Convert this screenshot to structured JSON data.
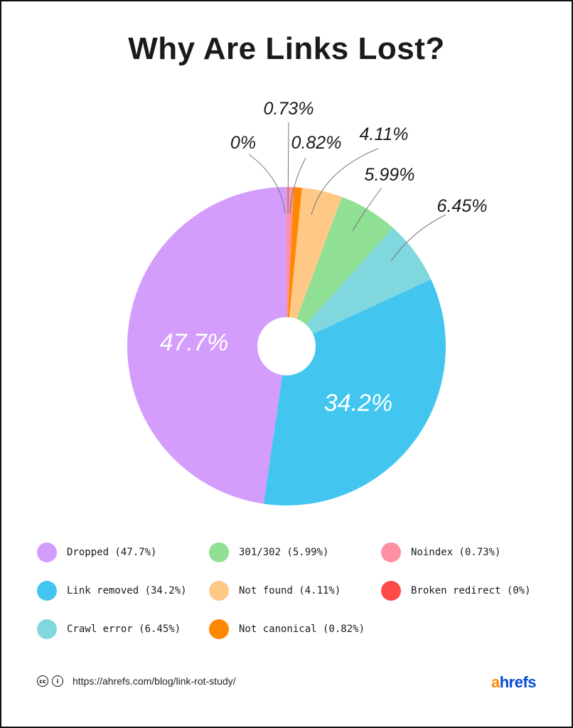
{
  "title": "Why Are Links Lost?",
  "chart_data": {
    "type": "pie",
    "title": "Why Are Links Lost?",
    "donut_hole": true,
    "start_angle_deg": 0,
    "direction": "clockwise",
    "slices": [
      {
        "label": "Broken redirect",
        "value": 0,
        "color": "#ff4a4a",
        "data_label": "0%"
      },
      {
        "label": "Noindex",
        "value": 0.73,
        "color": "#ff8fa3",
        "data_label": "0.73%"
      },
      {
        "label": "Not canonical",
        "value": 0.82,
        "color": "#ff8800",
        "data_label": "0.82%"
      },
      {
        "label": "Not found",
        "value": 4.11,
        "color": "#ffc887",
        "data_label": "4.11%"
      },
      {
        "label": "301/302",
        "value": 5.99,
        "color": "#8fdf94",
        "data_label": "5.99%"
      },
      {
        "label": "Crawl error",
        "value": 6.45,
        "color": "#80d7de",
        "data_label": "6.45%"
      },
      {
        "label": "Link removed",
        "value": 34.2,
        "color": "#42c6f0",
        "data_label": "34.2%"
      },
      {
        "label": "Dropped",
        "value": 47.7,
        "color": "#d49dfc",
        "data_label": "47.7%"
      }
    ],
    "legend_position": "bottom"
  },
  "labels": {
    "dropped": "47.7%",
    "link_removed": "34.2%",
    "crawl_error": "6.45%",
    "r301": "5.99%",
    "not_found": "4.11%",
    "not_canonical": "0.82%",
    "noindex": "0.73%",
    "broken_redirect": "0%"
  },
  "legend": [
    {
      "text": "Dropped (47.7%)",
      "color": "#d49dfc"
    },
    {
      "text": "Link removed (34.2%)",
      "color": "#42c6f0"
    },
    {
      "text": "Crawl error (6.45%)",
      "color": "#80d7de"
    },
    {
      "text": "301/302 (5.99%)",
      "color": "#8fdf94"
    },
    {
      "text": "Not found (4.11%)",
      "color": "#ffc887"
    },
    {
      "text": "Not canonical (0.82%)",
      "color": "#ff8800"
    },
    {
      "text": "Noindex (0.73%)",
      "color": "#ff8fa3"
    },
    {
      "text": "Broken redirect (0%)",
      "color": "#ff4a4a"
    }
  ],
  "footer": {
    "cc_icon": "cc",
    "by_icon": "i",
    "url": "https://ahrefs.com/blog/link-rot-study/",
    "brand_a": "a",
    "brand_rest": "hrefs"
  }
}
